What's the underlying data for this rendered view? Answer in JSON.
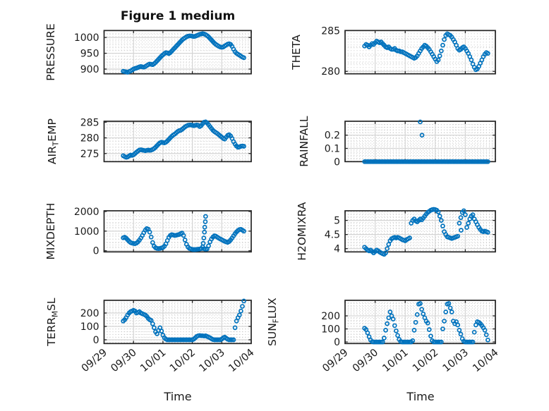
{
  "figure": {
    "title": "Figure 1 medium",
    "xlabel": "Time",
    "x_tick_labels": [
      "09/29",
      "09/30",
      "10/01",
      "10/02",
      "10/03",
      "10/04"
    ],
    "colors": {
      "marker": "#0072BD",
      "axis_text": "#1a1a1a",
      "grid_major": "#d4d4d4",
      "grid_minor": "#c9c9c9",
      "axes_frame": "#262626"
    }
  },
  "chart_data": [
    {
      "type": "scatter",
      "name": "pressure",
      "row": 0,
      "col": 0,
      "ylabel_segments": [
        {
          "text": "PRESSURE",
          "sub": false
        }
      ],
      "ylim": [
        885,
        1022
      ],
      "yticks": [
        900,
        950,
        1000
      ],
      "ytick_labels": [
        "900",
        "950",
        "1000"
      ],
      "yminor": 10,
      "xlim": [
        0,
        5
      ],
      "t0": 0.65,
      "dt": 0.05,
      "y": [
        893,
        892,
        891,
        890,
        892,
        894,
        897,
        900,
        902,
        903,
        905,
        907,
        908,
        907,
        906,
        908,
        911,
        914,
        916,
        915,
        914,
        917,
        921,
        926,
        931,
        936,
        941,
        945,
        949,
        952,
        951,
        949,
        952,
        957,
        962,
        967,
        972,
        977,
        982,
        987,
        992,
        996,
        999,
        1002,
        1004,
        1005,
        1005,
        1004,
        1003,
        1004,
        1006,
        1008,
        1010,
        1011,
        1012,
        1011,
        1009,
        1006,
        1002,
        997,
        992,
        987,
        982,
        978,
        975,
        972,
        970,
        969,
        970,
        973,
        976,
        979,
        980,
        978,
        972,
        963,
        955,
        950,
        947,
        944,
        941,
        938,
        936
      ],
      "extra_points": []
    },
    {
      "type": "scatter",
      "name": "theta",
      "row": 0,
      "col": 1,
      "ylabel_segments": [
        {
          "text": "THETA",
          "sub": false
        }
      ],
      "ylim": [
        279.7,
        285.0
      ],
      "yticks": [
        280,
        285
      ],
      "ytick_labels": [
        "280",
        "285"
      ],
      "yminor": 1,
      "xlim": [
        0,
        5
      ],
      "t0": 0.65,
      "dt": 0.05,
      "y": [
        283.1,
        283.3,
        283.2,
        283.0,
        283.2,
        283.4,
        283.3,
        283.5,
        283.7,
        283.6,
        283.5,
        283.6,
        283.4,
        283.2,
        283.0,
        282.9,
        283.0,
        282.8,
        282.7,
        282.7,
        282.8,
        282.6,
        282.5,
        282.5,
        282.4,
        282.4,
        282.3,
        282.2,
        282.1,
        282.0,
        281.9,
        281.8,
        281.7,
        281.6,
        281.7,
        281.9,
        282.2,
        282.5,
        282.8,
        283.0,
        283.2,
        283.1,
        282.9,
        282.7,
        282.4,
        282.1,
        281.8,
        281.5,
        281.2,
        281.4,
        281.9,
        282.5,
        283.2,
        283.9,
        284.4,
        284.6,
        284.5,
        284.4,
        284.2,
        283.9,
        283.6,
        283.2,
        282.8,
        282.6,
        282.7,
        282.9,
        283.0,
        282.8,
        282.5,
        282.2,
        281.8,
        281.4,
        280.9,
        280.5,
        280.2,
        280.3,
        280.6,
        281.0,
        281.4,
        281.8,
        282.1,
        282.3,
        282.2
      ],
      "extra_points": []
    },
    {
      "type": "scatter",
      "name": "air-temp",
      "row": 1,
      "col": 0,
      "ylabel_segments": [
        {
          "text": "AIR",
          "sub": false
        },
        {
          "text": "T",
          "sub": true
        },
        {
          "text": "EMP",
          "sub": false
        }
      ],
      "ylim": [
        272.4,
        285.3
      ],
      "yticks": [
        275,
        280,
        285
      ],
      "ytick_labels": [
        "275",
        "280",
        "285"
      ],
      "yminor": 1,
      "xlim": [
        0,
        5
      ],
      "t0": 0.65,
      "dt": 0.05,
      "y": [
        274.3,
        274.0,
        273.8,
        273.9,
        274.2,
        274.5,
        274.4,
        274.6,
        275.0,
        275.4,
        275.8,
        276.1,
        276.2,
        276.1,
        276.0,
        275.9,
        276.0,
        276.1,
        276.0,
        276.1,
        276.3,
        276.6,
        277.0,
        277.5,
        278.0,
        278.4,
        278.6,
        278.5,
        278.4,
        278.6,
        279.0,
        279.5,
        280.0,
        280.5,
        280.9,
        281.2,
        281.6,
        282.0,
        282.3,
        282.4,
        282.7,
        283.1,
        283.5,
        283.8,
        284.0,
        284.1,
        284.1,
        284.0,
        283.9,
        284.0,
        284.1,
        284.0,
        283.6,
        283.9,
        284.5,
        285.0,
        285.1,
        284.8,
        284.2,
        283.6,
        283.0,
        282.4,
        282.0,
        281.7,
        281.4,
        281.0,
        280.6,
        280.2,
        279.8,
        279.6,
        280.2,
        280.8,
        281.0,
        280.6,
        279.8,
        278.8,
        278.0,
        277.4,
        277.0,
        277.1,
        277.3,
        277.4,
        277.3
      ],
      "extra_points": []
    },
    {
      "type": "scatter",
      "name": "rainfall",
      "row": 1,
      "col": 1,
      "ylabel_segments": [
        {
          "text": "RAINFALL",
          "sub": false
        }
      ],
      "ylim": [
        0,
        0.305
      ],
      "yticks": [
        0,
        0.1,
        0.2
      ],
      "ytick_labels": [
        "0",
        "0.1",
        "0.2"
      ],
      "yminor": 0.02,
      "xlim": [
        0,
        5
      ],
      "t0": 0.65,
      "dt": 0.05,
      "y": [
        0,
        0,
        0,
        0,
        0,
        0,
        0,
        0,
        0,
        0,
        0,
        0,
        0,
        0,
        0,
        0,
        0,
        0,
        0,
        0,
        0,
        0,
        0,
        0,
        0,
        0,
        0,
        0,
        0,
        0,
        0,
        0,
        0,
        0,
        0,
        0,
        0,
        0,
        0,
        0,
        0,
        0,
        0,
        0,
        0,
        0,
        0,
        0,
        0,
        0,
        0,
        0,
        0,
        0,
        0,
        0,
        0,
        0,
        0,
        0,
        0,
        0,
        0,
        0,
        0,
        0,
        0,
        0,
        0,
        0,
        0,
        0,
        0,
        0,
        0,
        0,
        0,
        0,
        0,
        0,
        0,
        0,
        0
      ],
      "extra_points": [
        [
          2.5,
          0.3
        ],
        [
          2.56,
          0.2
        ]
      ]
    },
    {
      "type": "scatter",
      "name": "mixdepth",
      "row": 2,
      "col": 0,
      "ylabel_segments": [
        {
          "text": "MIXDEPTH",
          "sub": false
        }
      ],
      "ylim": [
        -58,
        2036
      ],
      "yticks": [
        0,
        1000,
        2000
      ],
      "ytick_labels": [
        "0",
        "1000",
        "2000"
      ],
      "yminor": 200,
      "xlim": [
        0,
        5
      ],
      "t0": 0.65,
      "dt": 0.05,
      "y": [
        660,
        690,
        640,
        560,
        480,
        420,
        390,
        370,
        360,
        390,
        450,
        540,
        650,
        780,
        920,
        1050,
        1130,
        1100,
        950,
        700,
        420,
        230,
        150,
        120,
        110,
        120,
        140,
        170,
        230,
        350,
        520,
        680,
        780,
        820,
        800,
        780,
        790,
        810,
        830,
        870,
        900,
        780,
        550,
        330,
        190,
        120,
        90,
        70,
        60,
        60,
        70,
        80,
        90,
        110,
        200,
        100,
        80,
        90,
        250,
        450,
        600,
        700,
        760,
        740,
        690,
        640,
        600,
        560,
        520,
        480,
        450,
        430,
        470,
        550,
        650,
        760,
        870,
        960,
        1030,
        1080,
        1090,
        1050,
        1000
      ],
      "extra_points": [
        [
          3.37,
          380
        ],
        [
          3.39,
          650
        ],
        [
          3.41,
          950
        ],
        [
          3.42,
          1200
        ],
        [
          3.44,
          1480
        ],
        [
          3.45,
          1750
        ]
      ]
    },
    {
      "type": "scatter",
      "name": "h2omixra",
      "row": 2,
      "col": 1,
      "ylabel_segments": [
        {
          "text": "H2OMIXRA",
          "sub": false
        }
      ],
      "ylim": [
        3.885,
        5.34
      ],
      "yticks": [
        4,
        4.5,
        5
      ],
      "ytick_labels": [
        "4",
        "4.5",
        "5"
      ],
      "yminor": 0.1,
      "xlim": [
        0,
        5
      ],
      "t0": 0.65,
      "dt": 0.05,
      "y": [
        4.05,
        4.0,
        3.95,
        3.92,
        3.95,
        3.9,
        3.85,
        3.9,
        3.95,
        3.92,
        3.88,
        3.85,
        3.82,
        3.8,
        3.85,
        4.0,
        4.15,
        4.28,
        4.35,
        4.38,
        4.4,
        4.38,
        4.4,
        4.38,
        4.35,
        4.32,
        4.3,
        4.28,
        4.32,
        4.35,
        4.38,
        4.9,
        5.0,
        5.05,
        4.98,
        4.95,
        5.0,
        5.05,
        5.02,
        5.08,
        5.15,
        5.22,
        5.28,
        5.32,
        5.36,
        5.38,
        5.39,
        5.38,
        5.36,
        5.3,
        5.15,
        5.0,
        4.8,
        4.6,
        4.5,
        4.42,
        4.4,
        4.38,
        4.36,
        4.38,
        4.4,
        4.42,
        4.44,
        4.9,
        5.1,
        5.28,
        5.34,
        5.2,
        4.75,
        4.9,
        5.05,
        5.15,
        5.2,
        5.05,
        4.95,
        4.85,
        4.75,
        4.68,
        4.62,
        4.6,
        4.62,
        4.6,
        4.58
      ],
      "extra_points": [
        [
          3.86,
          4.65
        ]
      ]
    },
    {
      "type": "scatter",
      "name": "terr-msl",
      "row": 3,
      "col": 0,
      "ylabel_segments": [
        {
          "text": "TERR",
          "sub": false
        },
        {
          "text": "M",
          "sub": true
        },
        {
          "text": "SL",
          "sub": false
        }
      ],
      "ylim": [
        -28,
        295
      ],
      "yticks": [
        0,
        100,
        200
      ],
      "ytick_labels": [
        "0",
        "100",
        "200"
      ],
      "yminor": 20,
      "xlim": [
        0,
        5
      ],
      "t0": 0.65,
      "dt": 0.05,
      "y": [
        140,
        150,
        165,
        185,
        200,
        210,
        215,
        220,
        215,
        200,
        205,
        210,
        200,
        195,
        190,
        185,
        175,
        160,
        150,
        145,
        120,
        90,
        60,
        45,
        70,
        90,
        65,
        35,
        15,
        5,
        0,
        0,
        0,
        0,
        0,
        0,
        0,
        0,
        0,
        0,
        0,
        0,
        0,
        0,
        0,
        0,
        0,
        0,
        5,
        15,
        25,
        30,
        32,
        30,
        30,
        28,
        30,
        25,
        20,
        15,
        8,
        2,
        0,
        0,
        0,
        0,
        0,
        5,
        15,
        20,
        12,
        4,
        0,
        0,
        0,
        0,
        90,
        140,
        165,
        185,
        215,
        250,
        290
      ],
      "extra_points": []
    },
    {
      "type": "scatter",
      "name": "sun-flux",
      "row": 3,
      "col": 1,
      "ylabel_segments": [
        {
          "text": "SUN",
          "sub": false
        },
        {
          "text": "F",
          "sub": true
        },
        {
          "text": "LUX",
          "sub": false
        }
      ],
      "ylim": [
        -12,
        319
      ],
      "yticks": [
        0,
        100,
        200
      ],
      "ytick_labels": [
        "0",
        "100",
        "200"
      ],
      "yminor": 20,
      "xlim": [
        0,
        5
      ],
      "t0": 0.65,
      "dt": 0.05,
      "y": [
        105,
        95,
        70,
        40,
        15,
        2,
        0,
        0,
        0,
        0,
        0,
        0,
        0,
        30,
        90,
        140,
        185,
        230,
        200,
        175,
        125,
        85,
        50,
        20,
        3,
        0,
        0,
        0,
        0,
        0,
        0,
        0,
        10,
        90,
        150,
        210,
        290,
        295,
        250,
        215,
        185,
        160,
        145,
        95,
        45,
        10,
        0,
        0,
        0,
        0,
        0,
        0,
        100,
        160,
        230,
        290,
        295,
        260,
        230,
        160,
        140,
        155,
        130,
        90,
        60,
        25,
        5,
        0,
        0,
        0,
        0,
        0,
        0,
        75,
        130,
        155,
        150,
        140,
        125,
        110,
        90,
        55,
        15
      ],
      "extra_points": []
    }
  ]
}
